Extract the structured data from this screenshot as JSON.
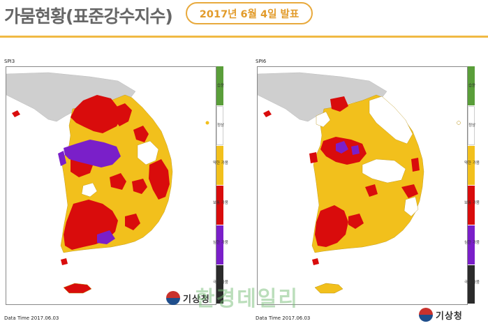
{
  "header": {
    "title": "가뭄현황(표준강수지수)",
    "date_label": "2017년 6월 4일 발표"
  },
  "legend": [
    {
      "label": "습윤",
      "color": "#5a9e3a"
    },
    {
      "label": "정상",
      "color": "#ffffff"
    },
    {
      "label": "약한 가뭄",
      "color": "#f2c01c"
    },
    {
      "label": "보통 가뭄",
      "color": "#d90c0c"
    },
    {
      "label": "심한 가뭄",
      "color": "#7a1fc9"
    },
    {
      "label": "극한 가뭄",
      "color": "#2b2b2b"
    }
  ],
  "maps": [
    {
      "label": "SPI3",
      "footer": "Data Time 2017.06.03"
    },
    {
      "label": "SPI6",
      "footer": "Data Time 2017.06.03",
      "logo": "기상청"
    }
  ],
  "watermark": "한경데일리",
  "logo_left": "기상청"
}
